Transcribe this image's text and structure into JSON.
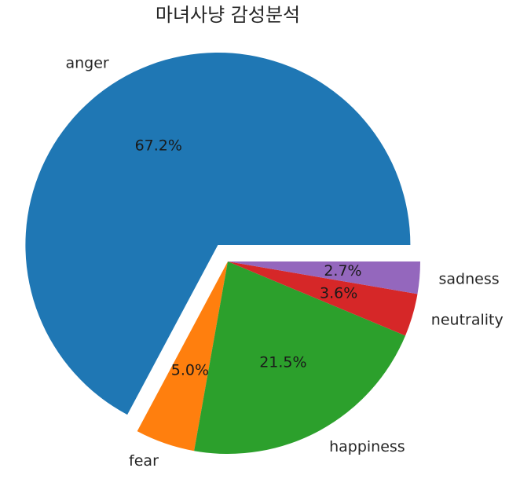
{
  "chart_data": {
    "type": "pie",
    "title": "마녀사냥 감성분석",
    "categories": [
      "anger",
      "fear",
      "happiness",
      "neutrality",
      "sadness"
    ],
    "values": [
      67.2,
      5.0,
      21.5,
      3.6,
      2.7
    ],
    "value_labels": [
      "67.2%",
      "5.0%",
      "21.5%",
      "3.6%",
      "2.7%"
    ],
    "colors": [
      "#1f77b4",
      "#ff7f0e",
      "#2ca02c",
      "#d62728",
      "#9467bd"
    ],
    "explode": [
      0.1,
      0,
      0,
      0,
      0
    ],
    "start_angle": 0,
    "direction": "counterclockwise",
    "legend": "none"
  }
}
